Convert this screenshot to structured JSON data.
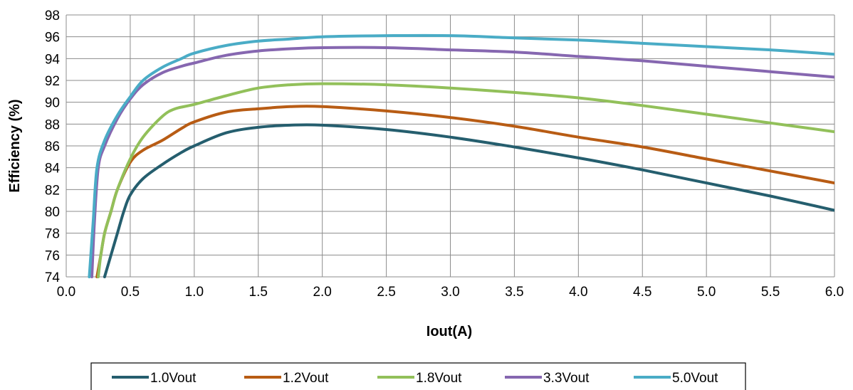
{
  "chart_data": {
    "type": "line",
    "title": "",
    "xlabel": "Iout(A)",
    "ylabel": "Efficiency (%)",
    "xlim": [
      0,
      6
    ],
    "ylim": [
      74,
      98
    ],
    "xticks": [
      "0.0",
      "0.5",
      "1.0",
      "1.5",
      "2.0",
      "2.5",
      "3.0",
      "3.5",
      "4.0",
      "4.5",
      "5.0",
      "5.5",
      "6.0"
    ],
    "yticks": [
      "74",
      "76",
      "78",
      "80",
      "82",
      "84",
      "86",
      "88",
      "90",
      "92",
      "94",
      "96",
      "98"
    ],
    "grid": true,
    "legend_position": "bottom",
    "series": [
      {
        "name": "1.0Vout",
        "color": "#255E6E",
        "points": [
          [
            0.3,
            74
          ],
          [
            0.35,
            76
          ],
          [
            0.4,
            78
          ],
          [
            0.45,
            80
          ],
          [
            0.5,
            81.5
          ],
          [
            0.6,
            83
          ],
          [
            0.75,
            84.3
          ],
          [
            0.9,
            85.4
          ],
          [
            1.0,
            86
          ],
          [
            1.25,
            87.2
          ],
          [
            1.5,
            87.7
          ],
          [
            1.75,
            87.9
          ],
          [
            2.0,
            87.9
          ],
          [
            2.5,
            87.5
          ],
          [
            3.0,
            86.8
          ],
          [
            3.5,
            85.9
          ],
          [
            4.0,
            84.9
          ],
          [
            4.5,
            83.8
          ],
          [
            5.0,
            82.6
          ],
          [
            5.5,
            81.4
          ],
          [
            6.0,
            80.1
          ]
        ]
      },
      {
        "name": "1.2Vout",
        "color": "#B85C14",
        "points": [
          [
            0.24,
            74
          ],
          [
            0.27,
            76
          ],
          [
            0.3,
            78
          ],
          [
            0.35,
            80
          ],
          [
            0.4,
            82
          ],
          [
            0.5,
            84.5
          ],
          [
            0.6,
            85.6
          ],
          [
            0.75,
            86.5
          ],
          [
            0.9,
            87.6
          ],
          [
            1.0,
            88.2
          ],
          [
            1.25,
            89.1
          ],
          [
            1.5,
            89.4
          ],
          [
            1.75,
            89.6
          ],
          [
            2.0,
            89.6
          ],
          [
            2.5,
            89.2
          ],
          [
            3.0,
            88.6
          ],
          [
            3.5,
            87.8
          ],
          [
            4.0,
            86.8
          ],
          [
            4.5,
            85.9
          ],
          [
            5.0,
            84.8
          ],
          [
            5.5,
            83.7
          ],
          [
            6.0,
            82.6
          ]
        ]
      },
      {
        "name": "1.8Vout",
        "color": "#92C05A",
        "points": [
          [
            0.25,
            74
          ],
          [
            0.27,
            76
          ],
          [
            0.3,
            78
          ],
          [
            0.35,
            80
          ],
          [
            0.4,
            82
          ],
          [
            0.5,
            84.8
          ],
          [
            0.6,
            86.8
          ],
          [
            0.75,
            88.7
          ],
          [
            0.85,
            89.4
          ],
          [
            1.0,
            89.8
          ],
          [
            1.25,
            90.6
          ],
          [
            1.5,
            91.3
          ],
          [
            1.75,
            91.6
          ],
          [
            2.0,
            91.7
          ],
          [
            2.5,
            91.6
          ],
          [
            3.0,
            91.3
          ],
          [
            3.5,
            90.9
          ],
          [
            4.0,
            90.4
          ],
          [
            4.5,
            89.7
          ],
          [
            5.0,
            88.9
          ],
          [
            5.5,
            88.1
          ],
          [
            6.0,
            87.3
          ]
        ]
      },
      {
        "name": "3.3Vout",
        "color": "#8667B0",
        "points": [
          [
            0.2,
            74
          ],
          [
            0.22,
            79
          ],
          [
            0.25,
            84
          ],
          [
            0.3,
            86
          ],
          [
            0.4,
            88.5
          ],
          [
            0.5,
            90.3
          ],
          [
            0.6,
            91.6
          ],
          [
            0.75,
            92.7
          ],
          [
            0.9,
            93.3
          ],
          [
            1.0,
            93.6
          ],
          [
            1.25,
            94.3
          ],
          [
            1.5,
            94.7
          ],
          [
            1.75,
            94.9
          ],
          [
            2.0,
            95.0
          ],
          [
            2.5,
            95.0
          ],
          [
            3.0,
            94.8
          ],
          [
            3.5,
            94.6
          ],
          [
            4.0,
            94.2
          ],
          [
            4.5,
            93.8
          ],
          [
            5.0,
            93.3
          ],
          [
            5.5,
            92.8
          ],
          [
            6.0,
            92.3
          ]
        ]
      },
      {
        "name": "5.0Vout",
        "color": "#4AACC6",
        "points": [
          [
            0.18,
            74
          ],
          [
            0.21,
            79
          ],
          [
            0.24,
            84
          ],
          [
            0.3,
            86.5
          ],
          [
            0.4,
            88.8
          ],
          [
            0.5,
            90.5
          ],
          [
            0.6,
            92
          ],
          [
            0.75,
            93.2
          ],
          [
            0.9,
            94.0
          ],
          [
            1.0,
            94.5
          ],
          [
            1.25,
            95.2
          ],
          [
            1.5,
            95.6
          ],
          [
            1.75,
            95.8
          ],
          [
            2.0,
            96.0
          ],
          [
            2.5,
            96.1
          ],
          [
            3.0,
            96.1
          ],
          [
            3.5,
            95.9
          ],
          [
            4.0,
            95.7
          ],
          [
            4.5,
            95.4
          ],
          [
            5.0,
            95.1
          ],
          [
            5.5,
            94.8
          ],
          [
            6.0,
            94.4
          ]
        ]
      }
    ]
  }
}
